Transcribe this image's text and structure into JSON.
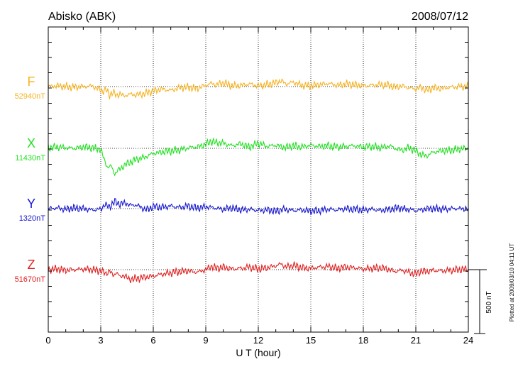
{
  "chart_data": {
    "type": "line",
    "title": "Abisko (ABK)",
    "date": "2008/07/12",
    "xlabel": "U T (hour)",
    "xlim": [
      0,
      24
    ],
    "xticks": [
      0,
      3,
      6,
      9,
      12,
      15,
      18,
      21,
      24
    ],
    "xtick_labels": [
      "0",
      "3",
      "6",
      "9",
      "12",
      "15",
      "18",
      "21",
      "24"
    ],
    "grid": true,
    "scale_bar_label": "500 nT",
    "scale_bar_nT": 500,
    "footer_note": "Plotted at 2009/03/10 04:11 UT",
    "series": [
      {
        "name": "F",
        "baseline_label": "52940nT",
        "color": "#f5b323",
        "x": [
          0,
          0.5,
          1,
          1.5,
          2,
          2.5,
          2.8,
          3.1,
          3.3,
          3.5,
          3.7,
          3.9,
          4.1,
          4.3,
          4.6,
          5,
          5.5,
          6,
          6.5,
          7,
          7.5,
          8,
          8.5,
          9,
          9.3,
          9.6,
          10,
          10.5,
          11,
          11.5,
          12,
          12.5,
          13,
          13.3,
          13.6,
          14,
          14.5,
          15,
          15.5,
          16,
          16.5,
          17,
          17.5,
          18,
          18.5,
          19,
          19.5,
          19.8,
          20.2,
          20.6,
          21,
          21.3,
          21.6,
          22,
          22.5,
          23,
          23.5,
          24
        ],
        "y": [
          0,
          5,
          0,
          -5,
          0,
          5,
          -15,
          -35,
          -25,
          -65,
          -45,
          -70,
          -55,
          -75,
          -60,
          -65,
          -55,
          -35,
          -20,
          -30,
          -10,
          -5,
          -15,
          10,
          25,
          15,
          30,
          5,
          10,
          20,
          5,
          15,
          30,
          45,
          20,
          35,
          10,
          5,
          15,
          25,
          10,
          20,
          15,
          5,
          10,
          15,
          10,
          -5,
          5,
          -10,
          -20,
          -5,
          -30,
          -10,
          -15,
          -5,
          0,
          0
        ]
      },
      {
        "name": "X",
        "baseline_label": "11430nT",
        "color": "#22e022",
        "x": [
          0,
          0.5,
          1,
          1.5,
          2,
          2.5,
          3,
          3.2,
          3.4,
          3.6,
          3.8,
          4,
          4.2,
          4.5,
          5,
          5.5,
          6,
          6.5,
          7,
          7.5,
          8,
          8.5,
          9,
          9.3,
          9.6,
          10,
          10.5,
          11,
          11.5,
          12,
          12.5,
          13,
          13.5,
          14,
          14.5,
          15,
          15.5,
          16,
          16.5,
          17,
          17.5,
          18,
          18.5,
          19,
          19.5,
          19.8,
          20.2,
          20.6,
          21,
          21.3,
          21.6,
          22,
          22.5,
          23,
          23.5,
          24
        ],
        "y": [
          5,
          10,
          5,
          0,
          10,
          5,
          -10,
          -90,
          -150,
          -140,
          -200,
          -170,
          -150,
          -120,
          -90,
          -70,
          -40,
          -30,
          -20,
          -15,
          5,
          10,
          30,
          55,
          45,
          40,
          20,
          35,
          10,
          40,
          15,
          25,
          5,
          20,
          10,
          25,
          15,
          20,
          10,
          15,
          20,
          10,
          15,
          5,
          20,
          0,
          -15,
          5,
          -20,
          -50,
          -60,
          -30,
          -20,
          -15,
          -5,
          0
        ]
      },
      {
        "name": "Y",
        "baseline_label": "1320nT",
        "color": "#1515d0",
        "x": [
          0,
          0.5,
          1,
          1.5,
          2,
          2.5,
          3,
          3.2,
          3.5,
          3.8,
          4.1,
          4.4,
          4.7,
          5,
          5.3,
          5.6,
          6,
          6.5,
          7,
          7.5,
          8,
          8.5,
          9,
          9.5,
          10,
          10.5,
          11,
          11.5,
          12,
          12.5,
          13,
          13.5,
          14,
          14.5,
          15,
          15.5,
          16,
          16.5,
          17,
          17.5,
          18,
          18.5,
          19,
          19.5,
          20,
          20.5,
          21,
          21.5,
          22,
          22.5,
          23,
          23.5,
          24
        ],
        "y": [
          0,
          5,
          -5,
          5,
          0,
          -10,
          -5,
          30,
          15,
          55,
          35,
          45,
          25,
          30,
          10,
          -10,
          15,
          10,
          20,
          10,
          20,
          5,
          15,
          5,
          -5,
          5,
          -10,
          -5,
          -15,
          -10,
          -20,
          -5,
          -15,
          -10,
          -20,
          -15,
          -5,
          -10,
          0,
          -5,
          -10,
          -5,
          -15,
          -5,
          5,
          -5,
          -15,
          -5,
          0,
          -5,
          0,
          0,
          0
        ]
      },
      {
        "name": "Z",
        "baseline_label": "51670nT",
        "color": "#e02020",
        "x": [
          0,
          0.5,
          1,
          1.5,
          2,
          2.5,
          3,
          3.3,
          3.5,
          3.7,
          3.9,
          4.1,
          4.3,
          4.6,
          5,
          5.5,
          6,
          6.5,
          7,
          7.5,
          8,
          8.5,
          9,
          9.3,
          9.6,
          10,
          10.5,
          11,
          11.5,
          12,
          12.5,
          13,
          13.3,
          13.6,
          14,
          14.5,
          15,
          15.5,
          16,
          16.5,
          17,
          17.5,
          18,
          18.5,
          19,
          19.5,
          19.8,
          20.2,
          20.6,
          21,
          21.3,
          21.6,
          22,
          22.5,
          23,
          23.5,
          24
        ],
        "y": [
          0,
          5,
          -5,
          0,
          5,
          0,
          -10,
          -30,
          -10,
          -45,
          -20,
          -60,
          -40,
          -75,
          -70,
          -60,
          -50,
          -35,
          -25,
          -15,
          -10,
          -20,
          0,
          25,
          10,
          20,
          5,
          10,
          20,
          5,
          15,
          30,
          45,
          20,
          35,
          15,
          10,
          20,
          25,
          10,
          20,
          15,
          5,
          10,
          15,
          0,
          -15,
          -5,
          -20,
          -35,
          -10,
          -15,
          -5,
          -10,
          -5,
          0,
          5
        ]
      }
    ]
  }
}
